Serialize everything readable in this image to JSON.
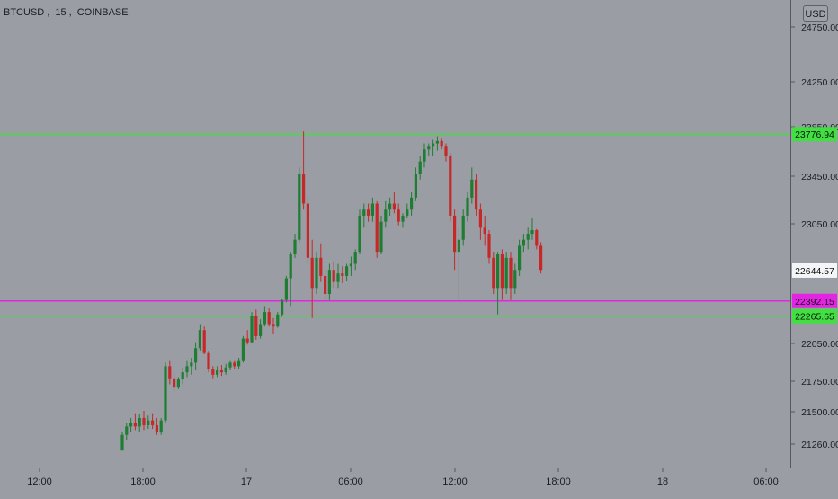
{
  "symbol": {
    "name": "BTCUSD",
    "interval": "15",
    "exchange": "COINBASE"
  },
  "currency": "USD",
  "colors": {
    "up": "#1e7d32",
    "down": "#c62828",
    "support": "#3fe03f",
    "pivot": "#e325e3",
    "background": "#9a9da4"
  },
  "chart_data": {
    "type": "candlestick",
    "title": "BTCUSD, 15, COINBASE",
    "price_axis_labels": [
      "24750.00",
      "24250.00",
      "23850.00",
      "23450.00",
      "23050.00",
      "22050.00",
      "21750.00",
      "21500.00",
      "21260.00"
    ],
    "time_axis_labels": [
      "12:00",
      "18:00",
      "17",
      "06:00",
      "12:00",
      "18:00",
      "18",
      "06:00"
    ],
    "horizontal_lines": [
      {
        "name": "resistance",
        "value": 23776.94,
        "label": "23776.94",
        "color": "#3fe03f"
      },
      {
        "name": "pivot",
        "value": 22392.15,
        "label": "22392.15",
        "color": "#e325e3"
      },
      {
        "name": "support",
        "value": 22265.65,
        "label": "22265.65",
        "color": "#3fe03f"
      }
    ],
    "last_price": {
      "value": 22644.57,
      "label": "22644.57"
    },
    "ohlc": [
      [
        21150,
        21300,
        21150,
        21280
      ],
      [
        21280,
        21380,
        21240,
        21350
      ],
      [
        21350,
        21420,
        21300,
        21380
      ],
      [
        21380,
        21460,
        21320,
        21350
      ],
      [
        21350,
        21450,
        21300,
        21420
      ],
      [
        21420,
        21480,
        21320,
        21360
      ],
      [
        21360,
        21440,
        21330,
        21400
      ],
      [
        21400,
        21460,
        21330,
        21360
      ],
      [
        21360,
        21420,
        21280,
        21300
      ],
      [
        21300,
        21420,
        21280,
        21400
      ],
      [
        21400,
        21880,
        21380,
        21850
      ],
      [
        21850,
        21900,
        21700,
        21750
      ],
      [
        21750,
        21800,
        21640,
        21680
      ],
      [
        21680,
        21760,
        21660,
        21740
      ],
      [
        21740,
        21840,
        21700,
        21800
      ],
      [
        21800,
        21900,
        21760,
        21850
      ],
      [
        21850,
        21920,
        21780,
        21880
      ],
      [
        21880,
        22050,
        21820,
        22000
      ],
      [
        22000,
        22200,
        21980,
        22150
      ],
      [
        22150,
        22180,
        21950,
        21960
      ],
      [
        21960,
        21980,
        21800,
        21830
      ],
      [
        21830,
        21850,
        21750,
        21780
      ],
      [
        21780,
        21850,
        21760,
        21820
      ],
      [
        21820,
        21860,
        21770,
        21800
      ],
      [
        21800,
        21870,
        21780,
        21840
      ],
      [
        21840,
        21900,
        21820,
        21880
      ],
      [
        21880,
        21900,
        21830,
        21850
      ],
      [
        21850,
        21920,
        21830,
        21900
      ],
      [
        21900,
        22100,
        21880,
        22080
      ],
      [
        22080,
        22150,
        22030,
        22050
      ],
      [
        22050,
        22300,
        22040,
        22270
      ],
      [
        22270,
        22320,
        22070,
        22100
      ],
      [
        22100,
        22240,
        22080,
        22200
      ],
      [
        22200,
        22350,
        22180,
        22300
      ],
      [
        22300,
        22330,
        22180,
        22200
      ],
      [
        22200,
        22250,
        22120,
        22180
      ],
      [
        22180,
        22300,
        22170,
        22280
      ],
      [
        22280,
        22410,
        22260,
        22400
      ],
      [
        22400,
        22600,
        22380,
        22580
      ],
      [
        22580,
        22800,
        22350,
        22780
      ],
      [
        22780,
        22950,
        22750,
        22900
      ],
      [
        22900,
        23500,
        22880,
        23450
      ],
      [
        23450,
        23800,
        23150,
        23200
      ],
      [
        23200,
        23250,
        22700,
        22750
      ],
      [
        22750,
        22900,
        22250,
        22500
      ],
      [
        22500,
        22800,
        22450,
        22750
      ],
      [
        22750,
        22870,
        22550,
        22600
      ],
      [
        22600,
        22650,
        22400,
        22450
      ],
      [
        22450,
        22700,
        22400,
        22650
      ],
      [
        22650,
        22720,
        22500,
        22550
      ],
      [
        22550,
        22700,
        22500,
        22620
      ],
      [
        22620,
        22680,
        22540,
        22600
      ],
      [
        22600,
        22700,
        22560,
        22680
      ],
      [
        22680,
        22760,
        22600,
        22700
      ],
      [
        22700,
        22820,
        22650,
        22800
      ],
      [
        22800,
        23150,
        22780,
        23100
      ],
      [
        23100,
        23200,
        23000,
        23150
      ],
      [
        23150,
        23200,
        23050,
        23100
      ],
      [
        23100,
        23250,
        23050,
        23200
      ],
      [
        23200,
        23220,
        22750,
        22800
      ],
      [
        22800,
        23100,
        22780,
        23050
      ],
      [
        23050,
        23220,
        23000,
        23150
      ],
      [
        23150,
        23250,
        23100,
        23200
      ],
      [
        23200,
        23300,
        23120,
        23150
      ],
      [
        23150,
        23200,
        23020,
        23050
      ],
      [
        23050,
        23120,
        23000,
        23100
      ],
      [
        23100,
        23200,
        23080,
        23150
      ],
      [
        23150,
        23300,
        23100,
        23250
      ],
      [
        23250,
        23500,
        23220,
        23450
      ],
      [
        23450,
        23600,
        23400,
        23550
      ],
      [
        23550,
        23700,
        23500,
        23650
      ],
      [
        23650,
        23700,
        23600,
        23680
      ],
      [
        23680,
        23730,
        23600,
        23700
      ],
      [
        23700,
        23760,
        23640,
        23720
      ],
      [
        23720,
        23740,
        23650,
        23680
      ],
      [
        23680,
        23700,
        23550,
        23600
      ],
      [
        23600,
        23620,
        23050,
        23100
      ],
      [
        23100,
        23150,
        22650,
        22800
      ],
      [
        22800,
        23000,
        22400,
        22900
      ],
      [
        22900,
        23150,
        22850,
        23100
      ],
      [
        23100,
        23300,
        23050,
        23250
      ],
      [
        23250,
        23500,
        23200,
        23400
      ],
      [
        23400,
        23450,
        23100,
        23150
      ],
      [
        23150,
        23200,
        22900,
        23000
      ],
      [
        23000,
        23100,
        22850,
        22950
      ],
      [
        22950,
        22980,
        22700,
        22750
      ],
      [
        22750,
        22800,
        22450,
        22500
      ],
      [
        22500,
        22800,
        22280,
        22780
      ],
      [
        22780,
        22820,
        22400,
        22500
      ],
      [
        22500,
        22800,
        22450,
        22750
      ],
      [
        22750,
        22800,
        22400,
        22500
      ],
      [
        22500,
        22700,
        22450,
        22650
      ],
      [
        22650,
        22900,
        22600,
        22850
      ],
      [
        22850,
        22950,
        22800,
        22900
      ],
      [
        22900,
        23000,
        22820,
        22950
      ],
      [
        22950,
        23080,
        22900,
        22980
      ],
      [
        22980,
        22990,
        22820,
        22850
      ],
      [
        22850,
        22880,
        22620,
        22650
      ]
    ]
  }
}
